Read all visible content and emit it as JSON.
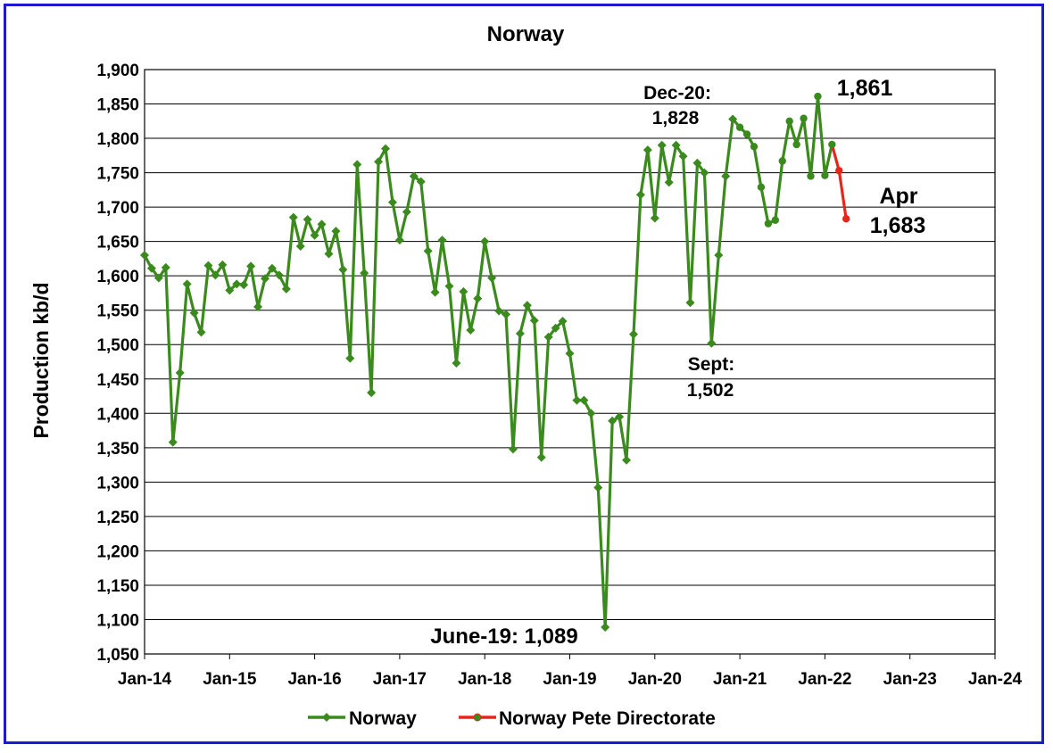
{
  "chart_data": {
    "type": "line",
    "title": "Norway",
    "xlabel": "",
    "ylabel": "Production kb/d",
    "ylim": [
      1050,
      1900
    ],
    "ytick_step": 50,
    "xlim": [
      "2014-01",
      "2024-01"
    ],
    "x_ticks": [
      "Jan-14",
      "Jan-15",
      "Jan-16",
      "Jan-17",
      "Jan-18",
      "Jan-19",
      "Jan-20",
      "Jan-21",
      "Jan-22",
      "Jan-23",
      "Jan-24"
    ],
    "grid": "horizontal",
    "legend_position": "bottom",
    "series": [
      {
        "name": "Norway",
        "color": "#3a8a1e",
        "marker": "diamond",
        "start": "2014-01",
        "values": [
          1630,
          1611,
          1597,
          1612,
          1358,
          1459,
          1588,
          1546,
          1518,
          1615,
          1601,
          1616,
          1579,
          1588,
          1587,
          1614,
          1555,
          1596,
          1611,
          1601,
          1581,
          1685,
          1643,
          1682,
          1659,
          1675,
          1632,
          1665,
          1609,
          1480,
          1762,
          1604,
          1430,
          1766,
          1785,
          1707,
          1652,
          1693,
          1745,
          1737,
          1636,
          1576,
          1652,
          1585,
          1473,
          1577,
          1521,
          1567,
          1650,
          1597,
          1549,
          1544,
          1348,
          1516,
          1557,
          1535,
          1336,
          1511,
          1524,
          1534,
          1487,
          1419,
          1419,
          1400,
          1292,
          1089,
          1389,
          1395,
          1332,
          1515,
          1718,
          1783,
          1684,
          1790,
          1736,
          1790,
          1774,
          1561,
          1764,
          1750,
          1502,
          1630,
          1745,
          1828
        ]
      },
      {
        "name": "",
        "color": "#3a8a1e",
        "marker": "circle",
        "start": "2020-12",
        "values": [
          1828,
          1816,
          1806,
          1788,
          1729,
          1676,
          1681,
          1767,
          1825,
          1791,
          1829,
          1745,
          1861,
          1746,
          1791
        ]
      },
      {
        "name": "Norway Pete Directorate",
        "color": "#e8251b",
        "marker": "circle",
        "start": "2022-02",
        "values": [
          1791,
          1753,
          1683
        ]
      }
    ],
    "annotations": [
      {
        "text": "Dec-20:",
        "x": "2020-12",
        "y": 1828
      },
      {
        "text": "1,828",
        "x": "2020-12",
        "y": 1828
      },
      {
        "text": "1,861",
        "x": "2021-12",
        "y": 1861
      },
      {
        "text": "Sept:",
        "x": "2020-09",
        "y": 1502
      },
      {
        "text": "1,502",
        "x": "2020-09",
        "y": 1502
      },
      {
        "text": "June-19: 1,089",
        "x": "2019-06",
        "y": 1089
      },
      {
        "text": "Apr",
        "x": "2022-04",
        "y": 1683
      },
      {
        "text": "1,683",
        "x": "2022-04",
        "y": 1683
      }
    ]
  }
}
